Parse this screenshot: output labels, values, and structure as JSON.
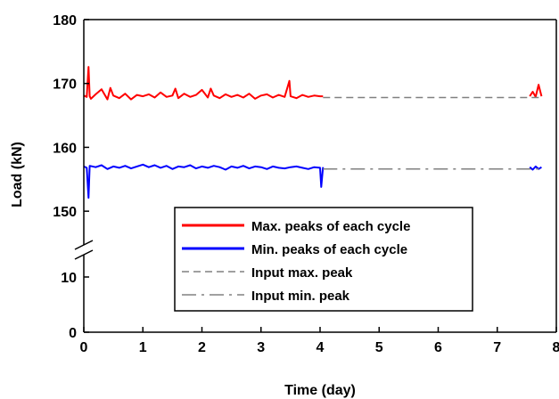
{
  "chart_data": {
    "type": "line",
    "xlabel": "Time (day)",
    "ylabel": "Load (kN)",
    "xlim": [
      0,
      8
    ],
    "x_ticks": [
      0,
      1,
      2,
      3,
      4,
      5,
      6,
      7,
      8
    ],
    "y_axis": {
      "broken": true,
      "lower_segment": {
        "range": [
          0,
          10
        ],
        "ticks": [
          0,
          10
        ]
      },
      "upper_segment": {
        "range": [
          145,
          180
        ],
        "ticks": [
          150,
          160,
          170,
          180
        ]
      }
    },
    "grid": false,
    "legend_position": "lower-center",
    "series": [
      {
        "name": "Max. peaks of each cycle",
        "color": "#ff0000",
        "style": "solid",
        "segments": [
          {
            "x": [
              0.0,
              0.05,
              0.08,
              0.1,
              0.12,
              0.2,
              0.3,
              0.4,
              0.45,
              0.5,
              0.6,
              0.7,
              0.8,
              0.9,
              1.0,
              1.1,
              1.2,
              1.3,
              1.4,
              1.5,
              1.55,
              1.6,
              1.7,
              1.8,
              1.9,
              2.0,
              2.1,
              2.15,
              2.2,
              2.3,
              2.4,
              2.5,
              2.6,
              2.7,
              2.8,
              2.9,
              3.0,
              3.1,
              3.2,
              3.3,
              3.4,
              3.48,
              3.5,
              3.6,
              3.7,
              3.8,
              3.9,
              4.0,
              4.05
            ],
            "y": [
              168.1,
              167.9,
              172.6,
              168.0,
              167.6,
              168.3,
              169.1,
              167.5,
              169.3,
              168.1,
              167.7,
              168.4,
              167.5,
              168.2,
              168.0,
              168.3,
              167.8,
              168.6,
              167.9,
              168.1,
              169.2,
              167.7,
              168.4,
              167.9,
              168.2,
              169.0,
              167.8,
              169.2,
              168.1,
              167.7,
              168.3,
              167.9,
              168.2,
              167.8,
              168.4,
              167.6,
              168.1,
              168.3,
              167.8,
              168.2,
              167.9,
              170.4,
              168.0,
              167.7,
              168.2,
              167.9,
              168.1,
              168.0,
              168.0
            ]
          },
          {
            "x": [
              7.55,
              7.6,
              7.65,
              7.7,
              7.75
            ],
            "y": [
              168.0,
              168.7,
              167.9,
              169.8,
              168.0
            ]
          }
        ]
      },
      {
        "name": "Min. peaks of each cycle",
        "color": "#0000ff",
        "style": "solid",
        "segments": [
          {
            "x": [
              0.0,
              0.05,
              0.08,
              0.1,
              0.2,
              0.3,
              0.4,
              0.5,
              0.6,
              0.7,
              0.8,
              0.9,
              1.0,
              1.1,
              1.2,
              1.3,
              1.4,
              1.5,
              1.6,
              1.7,
              1.8,
              1.9,
              2.0,
              2.1,
              2.2,
              2.3,
              2.4,
              2.5,
              2.6,
              2.7,
              2.8,
              2.9,
              3.0,
              3.1,
              3.2,
              3.3,
              3.4,
              3.5,
              3.6,
              3.7,
              3.8,
              3.9,
              4.0,
              4.02,
              4.05
            ],
            "y": [
              157.0,
              156.8,
              152.1,
              157.1,
              156.9,
              157.2,
              156.6,
              157.0,
              156.8,
              157.1,
              156.7,
              157.0,
              157.3,
              156.9,
              157.2,
              156.8,
              157.1,
              156.6,
              157.0,
              156.9,
              157.2,
              156.7,
              157.0,
              156.8,
              157.1,
              156.9,
              156.5,
              157.0,
              156.8,
              157.1,
              156.7,
              157.0,
              156.9,
              156.6,
              157.0,
              156.8,
              156.7,
              156.9,
              157.0,
              156.8,
              156.6,
              156.9,
              156.8,
              153.8,
              156.9
            ]
          },
          {
            "x": [
              7.55,
              7.6,
              7.65,
              7.7,
              7.75
            ],
            "y": [
              156.9,
              156.5,
              157.0,
              156.6,
              156.9
            ]
          }
        ]
      },
      {
        "name": "Input max. peak",
        "color": "#808080",
        "style": "dashed",
        "segments": [
          {
            "x": [
              4.05,
              7.75
            ],
            "y": [
              167.8,
              167.8
            ]
          }
        ]
      },
      {
        "name": "Input min. peak",
        "color": "#808080",
        "style": "dashdot",
        "segments": [
          {
            "x": [
              4.05,
              7.75
            ],
            "y": [
              156.6,
              156.6
            ]
          }
        ]
      }
    ]
  }
}
